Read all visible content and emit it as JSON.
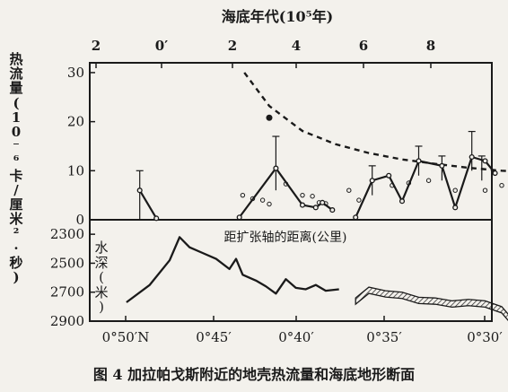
{
  "caption": "图 4  加拉帕戈斯附近的地壳热流量和海底地形断面",
  "chart_data": [
    {
      "type": "line",
      "title": "海底年代(10⁵年)",
      "top_axis_ticks": [
        "2",
        "0′",
        "2",
        "4",
        "6",
        "8"
      ],
      "ylabel": "热流量 (10⁻⁶卡/厘米²·秒)",
      "ylim": [
        0,
        32
      ],
      "y_ticks": [
        "0",
        "10",
        "20",
        "30"
      ],
      "series": [
        {
          "values": [
            [
              -1.9,
              6
            ],
            [
              -1.4,
              0.3
            ]
          ]
        },
        {
          "values": [
            [
              1.1,
              0.5
            ],
            [
              2.2,
              10.5
            ],
            [
              3.0,
              3
            ],
            [
              3.4,
              2.5
            ],
            [
              3.6,
              3.5
            ],
            [
              3.9,
              2
            ]
          ]
        },
        {
          "values": [
            [
              4.6,
              0.5
            ],
            [
              5.1,
              8
            ],
            [
              5.6,
              9
            ],
            [
              6.0,
              3.8
            ],
            [
              6.5,
              12
            ],
            [
              7.2,
              11
            ],
            [
              7.6,
              2.5
            ],
            [
              8.1,
              12.8
            ],
            [
              8.5,
              12
            ],
            [
              8.8,
              9.5
            ]
          ]
        }
      ],
      "theoretical_curve": [
        [
          1.25,
          30
        ],
        [
          2.0,
          23.2
        ],
        [
          3.0,
          18.1
        ],
        [
          4.0,
          15.4
        ],
        [
          5.0,
          13.6
        ],
        [
          6.0,
          12.3
        ],
        [
          7.0,
          11.4
        ],
        [
          8.0,
          10.6
        ],
        [
          9.0,
          10.0
        ],
        [
          9.3,
          9.9
        ]
      ],
      "error_bars": [
        [
          -1.9,
          0,
          10
        ],
        [
          2.2,
          6,
          17
        ],
        [
          5.1,
          5,
          11
        ],
        [
          6.5,
          9,
          15
        ],
        [
          7.2,
          8,
          13
        ],
        [
          8.1,
          10,
          18
        ],
        [
          8.4,
          8,
          13
        ]
      ],
      "scatter": [
        [
          1.2,
          5
        ],
        [
          1.5,
          4.3
        ],
        [
          1.8,
          4
        ],
        [
          2.0,
          3.2
        ],
        [
          2.5,
          7.3
        ],
        [
          3.0,
          5
        ],
        [
          3.3,
          4.8
        ],
        [
          3.5,
          3.5
        ],
        [
          3.7,
          3.3
        ],
        [
          4.4,
          6
        ],
        [
          4.7,
          4
        ],
        [
          5.7,
          7
        ],
        [
          6.2,
          7.5
        ],
        [
          6.8,
          8
        ],
        [
          7.6,
          6
        ],
        [
          8.5,
          6
        ],
        [
          9.0,
          7
        ]
      ],
      "filled_point": [
        2.0,
        20.8
      ]
    },
    {
      "type": "area",
      "subtitle": "距扩张轴的距离(公里)",
      "ylabel": "水深(米)",
      "ylim": [
        2900,
        2200
      ],
      "y_ticks": [
        "2300",
        "2500",
        "2700",
        "2900"
      ],
      "x_ticks": [
        "0°50′N",
        "0°45′",
        "0°40′",
        "0°35′",
        "0°30′"
      ],
      "profile": [
        [
          -2.3,
          2770
        ],
        [
          -1.6,
          2650
        ],
        [
          -1.0,
          2480
        ],
        [
          -0.7,
          2320
        ],
        [
          -0.4,
          2390
        ],
        [
          0.0,
          2430
        ],
        [
          0.4,
          2470
        ],
        [
          0.8,
          2540
        ],
        [
          1.0,
          2470
        ],
        [
          1.2,
          2580
        ],
        [
          1.6,
          2620
        ],
        [
          1.9,
          2660
        ],
        [
          2.2,
          2710
        ],
        [
          2.5,
          2610
        ],
        [
          2.8,
          2670
        ],
        [
          3.1,
          2680
        ],
        [
          3.4,
          2650
        ],
        [
          3.7,
          2690
        ],
        [
          4.1,
          2680
        ],
        [
          4.6,
          2740
        ],
        [
          5.0,
          2665
        ],
        [
          5.5,
          2690
        ],
        [
          6.0,
          2700
        ],
        [
          6.5,
          2735
        ],
        [
          7.0,
          2740
        ],
        [
          7.5,
          2760
        ],
        [
          8.0,
          2750
        ],
        [
          8.5,
          2760
        ],
        [
          9.0,
          2800
        ],
        [
          9.3,
          2880
        ]
      ],
      "gap_after": 4.1
    }
  ]
}
